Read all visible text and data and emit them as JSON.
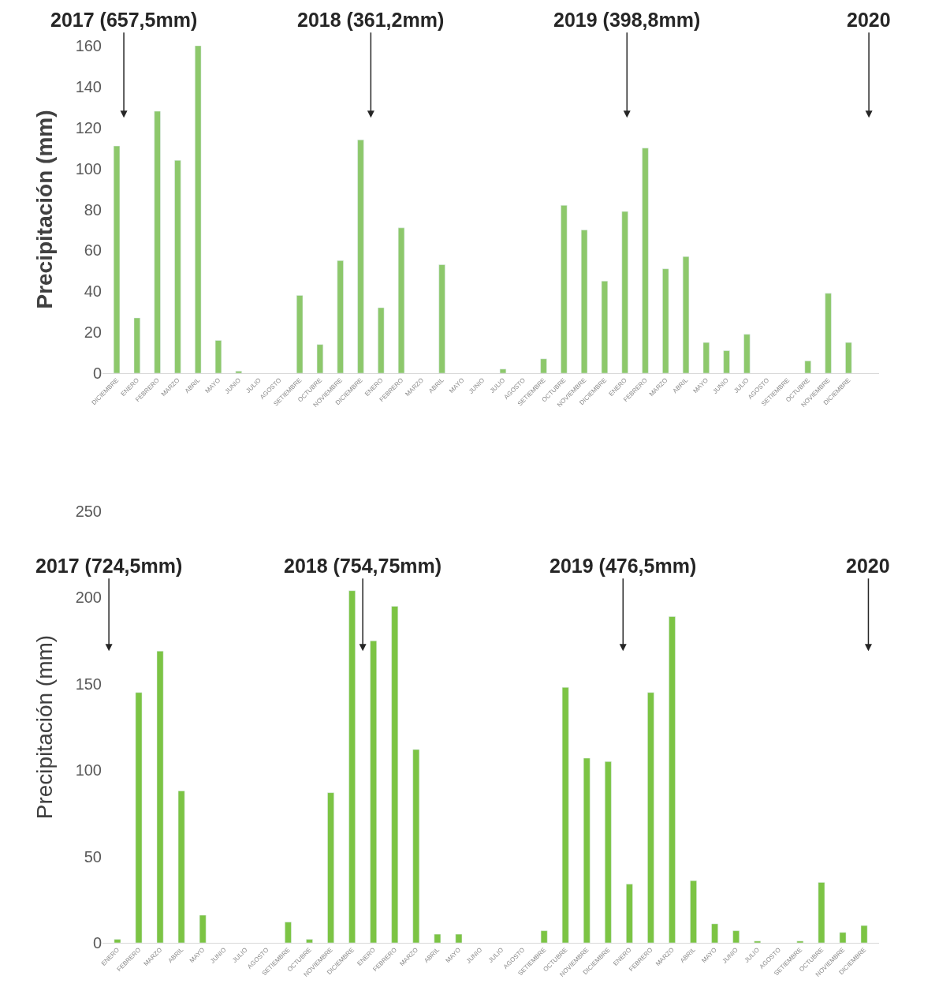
{
  "chart_data": [
    {
      "type": "bar",
      "ylabel": "Precipitación (mm)",
      "color": "#8dc86b",
      "categories": [
        "DICIEMBRE",
        "ENERO",
        "FEBRERO",
        "MARZO",
        "ABRIL",
        "MAYO",
        "JUNIO",
        "JULIO",
        "AGOSTO",
        "SETIEMBRE",
        "OCTUBRE",
        "NOVIEMBRE",
        "DICIEMBRE",
        "ENERO",
        "FEBRERO",
        "MARZO",
        "ABRIL",
        "MAYO",
        "JUNIO",
        "JULIO",
        "AGOSTO",
        "SETIEMBRE",
        "OCTUBRE",
        "NOVIEMBRE",
        "DICIEMBRE",
        "ENERO",
        "FEBRERO",
        "MARZO",
        "ABRIL",
        "MAYO",
        "JUNIO",
        "JULIO",
        "AGOSTO",
        "SETIEMBRE",
        "OCTUBRE",
        "NOVIEMBRE",
        "DICIEMBRE"
      ],
      "values": [
        111,
        27,
        128,
        104,
        160,
        16,
        1,
        null,
        null,
        38,
        14,
        55,
        114,
        32,
        71,
        null,
        53,
        null,
        null,
        2,
        null,
        7,
        82,
        70,
        45,
        79,
        110,
        51,
        57,
        15,
        11,
        19,
        null,
        null,
        6,
        39,
        15
      ],
      "ylim": [
        0,
        160
      ],
      "yticks": [
        0,
        20,
        40,
        60,
        80,
        100,
        120,
        140,
        160
      ],
      "annotations": [
        "2017 (657,5mm)",
        "2018 (361,2mm)",
        "2019 (398,8mm)",
        "2020"
      ]
    },
    {
      "type": "bar",
      "ylabel": "Precipitación (mm)",
      "color": "#7cc444",
      "categories": [
        "ENERO",
        "FEBRERO",
        "MARZO",
        "ABRIL",
        "MAYO",
        "JUNIO",
        "JULIO",
        "AGOSTO",
        "SETIEMBRE",
        "OCTUBRE",
        "NOVIEMBRE",
        "DICIEMBRE",
        "ENERO",
        "FEBRERO",
        "MARZO",
        "ABRIL",
        "MAYO",
        "JUNIO",
        "JULIO",
        "AGOSTO",
        "SETIEMBRE",
        "OCTUBRE",
        "NOVIEMBRE",
        "DICIEMBRE",
        "ENERO",
        "FEBRERO",
        "MARZO",
        "ABRIL",
        "MAYO",
        "JUNIO",
        "JULIO",
        "AGOSTO",
        "SETIEMBRE",
        "OCTUBRE",
        "NOVIEMBRE",
        "DICIEMBRE"
      ],
      "values": [
        2,
        145,
        169,
        88,
        16,
        null,
        null,
        null,
        12,
        2,
        87,
        204,
        175,
        195,
        112,
        5,
        5,
        null,
        null,
        null,
        7,
        148,
        107,
        105,
        34,
        145,
        189,
        36,
        11,
        7,
        1,
        null,
        1,
        35,
        6,
        10
      ],
      "ylim": [
        0,
        250
      ],
      "yticks": [
        0,
        50,
        100,
        150,
        200,
        250
      ],
      "annotations": [
        "2017 (724,5mm)",
        "2018 (754,75mm)",
        "2019 (476,5mm)",
        "2020"
      ]
    }
  ]
}
